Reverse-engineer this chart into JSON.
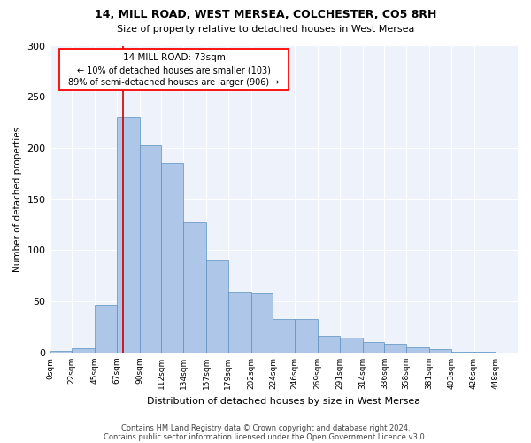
{
  "title1": "14, MILL ROAD, WEST MERSEA, COLCHESTER, CO5 8RH",
  "title2": "Size of property relative to detached houses in West Mersea",
  "xlabel": "Distribution of detached houses by size in West Mersea",
  "ylabel": "Number of detached properties",
  "footer1": "Contains HM Land Registry data © Crown copyright and database right 2024.",
  "footer2": "Contains public sector information licensed under the Open Government Licence v3.0.",
  "annotation_title": "14 MILL ROAD: 73sqm",
  "annotation_line1": "← 10% of detached houses are smaller (103)",
  "annotation_line2": "89% of semi-detached houses are larger (906) →",
  "bar_color": "#aec6e8",
  "bar_edge_color": "#5a8fc0",
  "vline_color": "#cc0000",
  "vline_x": 73,
  "bar_values": [
    2,
    4,
    47,
    230,
    203,
    185,
    127,
    90,
    59,
    58,
    33,
    33,
    16,
    15,
    10,
    9,
    5,
    3,
    1,
    1,
    0
  ],
  "bin_edges": [
    0,
    22,
    45,
    67,
    90,
    112,
    134,
    157,
    179,
    202,
    224,
    246,
    269,
    291,
    314,
    336,
    358,
    381,
    403,
    426,
    448,
    470
  ],
  "tick_labels": [
    "0sqm",
    "22sqm",
    "45sqm",
    "67sqm",
    "90sqm",
    "112sqm",
    "134sqm",
    "157sqm",
    "179sqm",
    "202sqm",
    "224sqm",
    "246sqm",
    "269sqm",
    "291sqm",
    "314sqm",
    "336sqm",
    "358sqm",
    "381sqm",
    "403sqm",
    "426sqm",
    "448sqm"
  ],
  "ylim": [
    0,
    300
  ],
  "yticks": [
    0,
    50,
    100,
    150,
    200,
    250,
    300
  ],
  "bg_color": "#eef3fb",
  "figsize": [
    6.0,
    5.0
  ],
  "dpi": 100
}
